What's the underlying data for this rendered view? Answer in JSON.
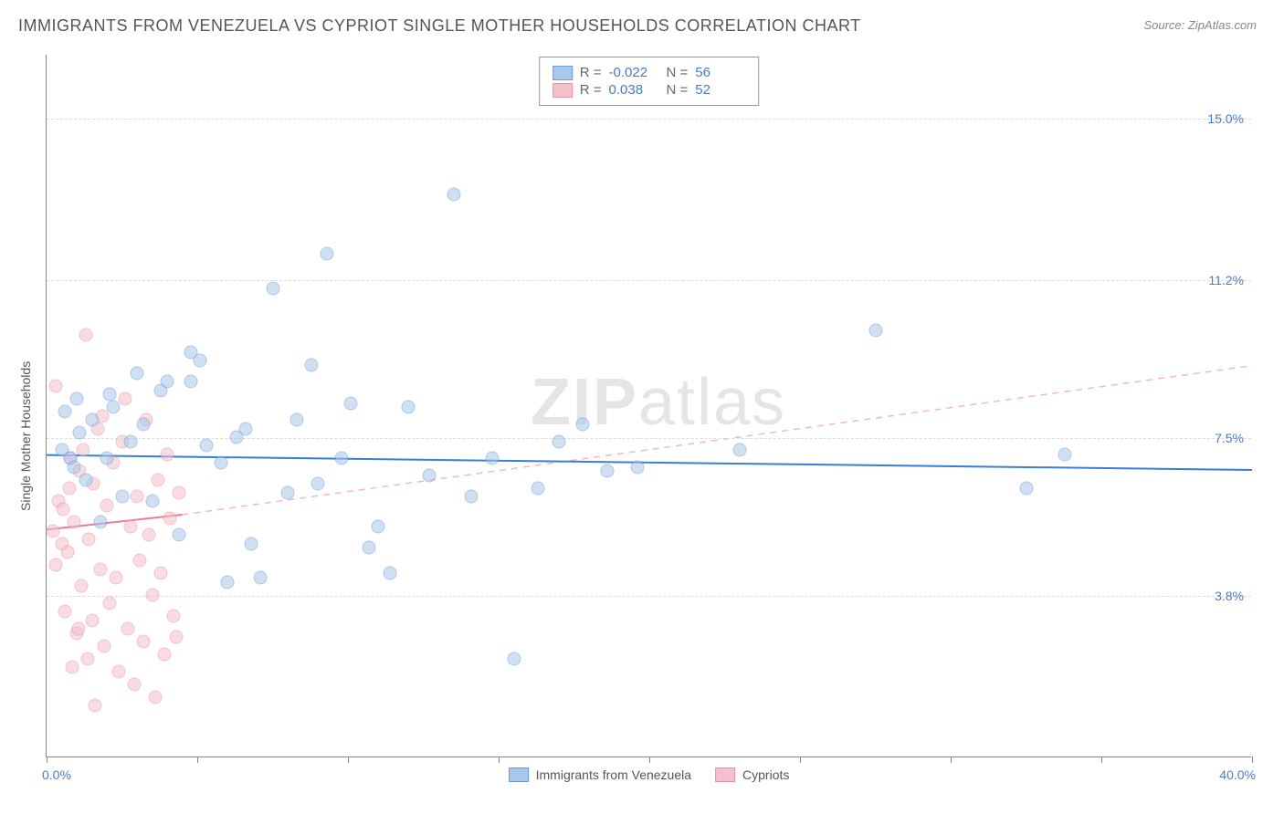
{
  "title": "IMMIGRANTS FROM VENEZUELA VS CYPRIOT SINGLE MOTHER HOUSEHOLDS CORRELATION CHART",
  "source": "Source: ZipAtlas.com",
  "watermark_a": "ZIP",
  "watermark_b": "atlas",
  "chart": {
    "type": "scatter",
    "xlim": [
      0.0,
      40.0
    ],
    "ylim": [
      0.0,
      16.5
    ],
    "yticks": [
      3.8,
      7.5,
      11.2,
      15.0
    ],
    "ytick_labels": [
      "3.8%",
      "7.5%",
      "11.2%",
      "15.0%"
    ],
    "xtick_positions": [
      0,
      5,
      10,
      15,
      20,
      25,
      30,
      35,
      40
    ],
    "xlim_labels": [
      "0.0%",
      "40.0%"
    ],
    "ylabel": "Single Mother Households",
    "background_color": "#ffffff",
    "grid_color": "#dddddd",
    "axis_color": "#888888",
    "marker_radius": 7.5,
    "marker_opacity": 0.55,
    "series": [
      {
        "name": "Immigrants from Venezuela",
        "color_fill": "#a9c7ea",
        "color_stroke": "#6a9bd8",
        "R": "-0.022",
        "N": "56",
        "trend": {
          "y_start": 7.1,
          "y_end": 6.75,
          "color": "#3b7dd8",
          "width": 2,
          "dash": "none"
        },
        "points": [
          [
            0.5,
            7.2
          ],
          [
            0.6,
            8.1
          ],
          [
            0.8,
            7.0
          ],
          [
            0.9,
            6.8
          ],
          [
            1.0,
            8.4
          ],
          [
            1.1,
            7.6
          ],
          [
            1.3,
            6.5
          ],
          [
            1.5,
            7.9
          ],
          [
            1.8,
            5.5
          ],
          [
            2.0,
            7.0
          ],
          [
            2.2,
            8.2
          ],
          [
            2.5,
            6.1
          ],
          [
            2.8,
            7.4
          ],
          [
            3.2,
            7.8
          ],
          [
            3.5,
            6.0
          ],
          [
            3.8,
            8.6
          ],
          [
            4.0,
            8.8
          ],
          [
            4.4,
            5.2
          ],
          [
            4.8,
            9.5
          ],
          [
            5.3,
            7.3
          ],
          [
            5.8,
            6.9
          ],
          [
            6.0,
            4.1
          ],
          [
            6.3,
            7.5
          ],
          [
            6.8,
            5.0
          ],
          [
            7.5,
            11.0
          ],
          [
            8.0,
            6.2
          ],
          [
            8.3,
            7.9
          ],
          [
            8.8,
            9.2
          ],
          [
            9.3,
            11.8
          ],
          [
            9.8,
            7.0
          ],
          [
            10.1,
            8.3
          ],
          [
            10.7,
            4.9
          ],
          [
            11.4,
            4.3
          ],
          [
            12.0,
            8.2
          ],
          [
            12.7,
            6.6
          ],
          [
            13.5,
            13.2
          ],
          [
            14.1,
            6.1
          ],
          [
            14.8,
            7.0
          ],
          [
            15.5,
            2.3
          ],
          [
            16.3,
            6.3
          ],
          [
            17.0,
            7.4
          ],
          [
            17.8,
            7.8
          ],
          [
            18.6,
            6.7
          ],
          [
            19.6,
            6.8
          ],
          [
            23.0,
            7.2
          ],
          [
            27.5,
            10.0
          ],
          [
            32.5,
            6.3
          ],
          [
            33.8,
            7.1
          ],
          [
            4.8,
            8.8
          ],
          [
            5.1,
            9.3
          ],
          [
            6.6,
            7.7
          ],
          [
            7.1,
            4.2
          ],
          [
            9.0,
            6.4
          ],
          [
            11.0,
            5.4
          ],
          [
            3.0,
            9.0
          ],
          [
            2.1,
            8.5
          ]
        ]
      },
      {
        "name": "Cypriots",
        "color_fill": "#f4c0cc",
        "color_stroke": "#e890a8",
        "R": "0.038",
        "N": "52",
        "trend_solid": {
          "x_end": 4.5,
          "y_start": 5.35,
          "y_end": 5.7,
          "color": "#e57f9a",
          "width": 2
        },
        "trend_dash": {
          "x_start": 4.5,
          "y_start": 5.7,
          "y_end": 9.2,
          "color": "#f2b8c6",
          "width": 1.5
        },
        "points": [
          [
            0.2,
            5.3
          ],
          [
            0.3,
            4.5
          ],
          [
            0.4,
            6.0
          ],
          [
            0.5,
            5.0
          ],
          [
            0.55,
            5.8
          ],
          [
            0.6,
            3.4
          ],
          [
            0.7,
            4.8
          ],
          [
            0.75,
            6.3
          ],
          [
            0.8,
            7.0
          ],
          [
            0.85,
            2.1
          ],
          [
            0.9,
            5.5
          ],
          [
            1.0,
            2.9
          ],
          [
            1.05,
            3.0
          ],
          [
            1.1,
            6.7
          ],
          [
            1.15,
            4.0
          ],
          [
            1.2,
            7.2
          ],
          [
            1.3,
            9.9
          ],
          [
            1.35,
            2.3
          ],
          [
            1.4,
            5.1
          ],
          [
            1.5,
            3.2
          ],
          [
            1.55,
            6.4
          ],
          [
            1.6,
            1.2
          ],
          [
            1.7,
            7.7
          ],
          [
            1.8,
            4.4
          ],
          [
            1.85,
            8.0
          ],
          [
            1.9,
            2.6
          ],
          [
            2.0,
            5.9
          ],
          [
            2.1,
            3.6
          ],
          [
            2.2,
            6.9
          ],
          [
            2.3,
            4.2
          ],
          [
            2.4,
            2.0
          ],
          [
            2.5,
            7.4
          ],
          [
            2.6,
            8.4
          ],
          [
            2.7,
            3.0
          ],
          [
            2.8,
            5.4
          ],
          [
            2.9,
            1.7
          ],
          [
            3.0,
            6.1
          ],
          [
            3.1,
            4.6
          ],
          [
            3.2,
            2.7
          ],
          [
            3.3,
            7.9
          ],
          [
            3.4,
            5.2
          ],
          [
            3.5,
            3.8
          ],
          [
            3.6,
            1.4
          ],
          [
            3.7,
            6.5
          ],
          [
            3.8,
            4.3
          ],
          [
            3.9,
            2.4
          ],
          [
            4.0,
            7.1
          ],
          [
            4.1,
            5.6
          ],
          [
            4.2,
            3.3
          ],
          [
            4.3,
            2.8
          ],
          [
            4.4,
            6.2
          ],
          [
            0.3,
            8.7
          ]
        ]
      }
    ],
    "bottom_legend": [
      {
        "label": "Immigrants from Venezuela",
        "fill": "#a9c7ea",
        "stroke": "#6a9bd8"
      },
      {
        "label": "Cypriots",
        "fill": "#f4c0cc",
        "stroke": "#e890a8"
      }
    ]
  }
}
